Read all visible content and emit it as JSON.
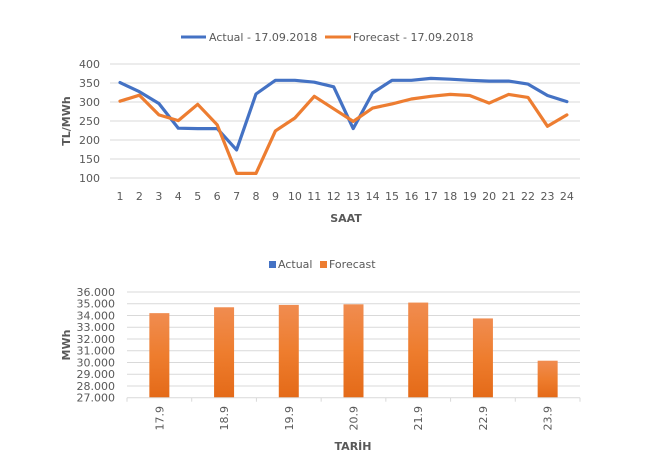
{
  "chart_data": [
    {
      "type": "line",
      "title": "",
      "xlabel": "SAAT",
      "ylabel": "TL/MWh",
      "ylim": [
        100,
        400
      ],
      "yticks": [
        "100",
        "150",
        "200",
        "250",
        "300",
        "350",
        "400"
      ],
      "grid": true,
      "legend_position": "top",
      "categories": [
        "1",
        "2",
        "3",
        "4",
        "5",
        "6",
        "7",
        "8",
        "9",
        "10",
        "11",
        "12",
        "13",
        "14",
        "15",
        "16",
        "17",
        "18",
        "19",
        "20",
        "21",
        "22",
        "23",
        "24"
      ],
      "series": [
        {
          "name": "Actual - 17.09.2018",
          "color": "#4472C4",
          "values": [
            351,
            327,
            296,
            231,
            230,
            230,
            174,
            321,
            357,
            357,
            352,
            340,
            230,
            324,
            357,
            357,
            362,
            360,
            357,
            355,
            355,
            347,
            317,
            301
          ]
        },
        {
          "name": "Forecast - 17.09.2018",
          "color": "#ED7D31",
          "values": [
            302,
            318,
            266,
            251,
            294,
            240,
            112,
            112,
            224,
            258,
            315,
            282,
            249,
            284,
            295,
            308,
            315,
            320,
            317,
            297,
            320,
            312,
            236,
            266
          ]
        }
      ]
    },
    {
      "type": "bar",
      "title": "",
      "xlabel": "TARİH",
      "ylabel": "MWh",
      "ylim": [
        27000,
        36000
      ],
      "yticks": [
        "27.000",
        "28.000",
        "29.000",
        "30.000",
        "31.000",
        "32.000",
        "33.000",
        "34.000",
        "35.000",
        "36.000"
      ],
      "grid": true,
      "legend_position": "top",
      "categories": [
        "17.9",
        "18.9",
        "19.9",
        "20.9",
        "21.9",
        "22.9",
        "23.9"
      ],
      "series": [
        {
          "name": "Actual",
          "color": "#4472C4",
          "values": []
        },
        {
          "name": "Forecast",
          "color": "#ED7D31",
          "values": [
            34200,
            34700,
            34900,
            34950,
            35100,
            33750,
            30150
          ]
        }
      ]
    }
  ]
}
